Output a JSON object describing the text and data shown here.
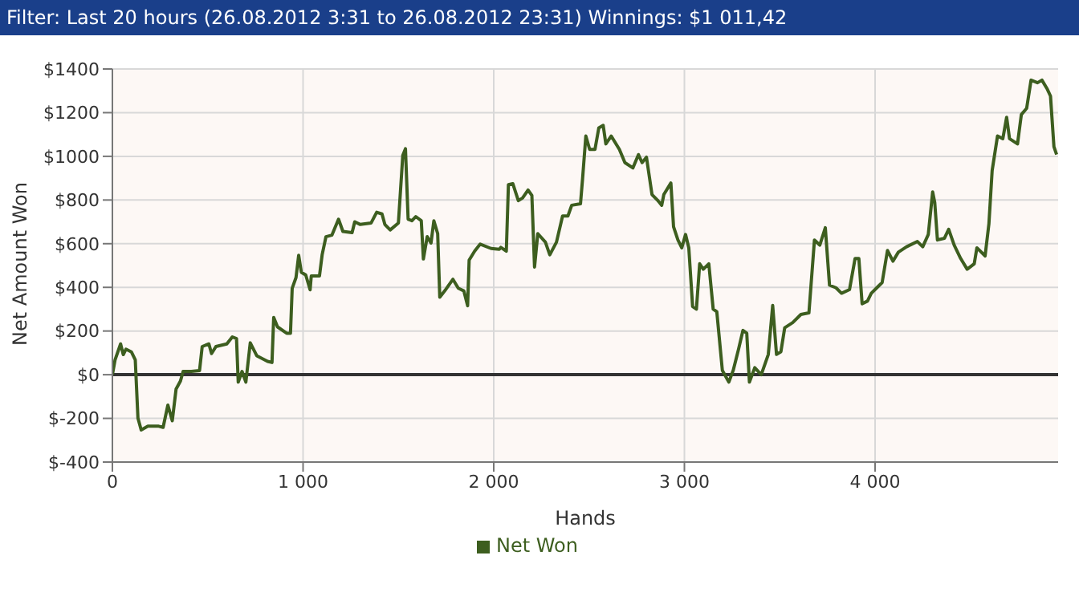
{
  "chart_data": {
    "type": "line",
    "title": "Filter: Last 20 hours (26.08.2012 3:31 to 26.08.2012 23:31) Winnings: $1 011,42",
    "xlabel": "Hands",
    "ylabel": "Net Amount Won",
    "xlim": [
      0,
      4960
    ],
    "xticks": [
      0,
      {
        "value": 1000,
        "label": "1 000"
      },
      {
        "value": 2000,
        "label": "2 000"
      },
      {
        "value": 3000,
        "label": "3 000"
      },
      {
        "value": 4000,
        "label": "4 000"
      }
    ],
    "ylim": [
      -400,
      1400
    ],
    "yticks": [
      {
        "value": -400,
        "label": "$-400"
      },
      {
        "value": -200,
        "label": "$-200"
      },
      {
        "value": 0,
        "label": "$0"
      },
      {
        "value": 200,
        "label": "$200"
      },
      {
        "value": 400,
        "label": "$400"
      },
      {
        "value": 600,
        "label": "$600"
      },
      {
        "value": 800,
        "label": "$800"
      },
      {
        "value": 1000,
        "label": "$1000"
      },
      {
        "value": 1200,
        "label": "$1200"
      },
      {
        "value": 1400,
        "label": "$1400"
      }
    ],
    "grid": true,
    "legend": "bottom",
    "marker": "none",
    "line_style": "solid",
    "ref_lines": [
      {
        "axis": "y",
        "value": 0,
        "color": "#333333"
      }
    ],
    "x": [
      0,
      14,
      43,
      57,
      71,
      100,
      120,
      134,
      151,
      186,
      243,
      266,
      291,
      314,
      334,
      357,
      371,
      414,
      457,
      471,
      506,
      520,
      543,
      600,
      629,
      651,
      660,
      680,
      700,
      723,
      757,
      814,
      837,
      846,
      866,
      914,
      934,
      943,
      963,
      977,
      991,
      1014,
      1037,
      1043,
      1086,
      1100,
      1120,
      1151,
      1186,
      1209,
      1257,
      1271,
      1300,
      1357,
      1386,
      1414,
      1429,
      1457,
      1500,
      1523,
      1537,
      1551,
      1571,
      1591,
      1620,
      1631,
      1651,
      1671,
      1686,
      1706,
      1717,
      1743,
      1786,
      1814,
      1843,
      1863,
      1871,
      1900,
      1929,
      1986,
      2029,
      2037,
      2066,
      2077,
      2100,
      2129,
      2151,
      2180,
      2200,
      2214,
      2231,
      2271,
      2294,
      2329,
      2361,
      2389,
      2409,
      2455,
      2466,
      2483,
      2503,
      2531,
      2551,
      2574,
      2588,
      2616,
      2659,
      2688,
      2730,
      2759,
      2778,
      2801,
      2830,
      2858,
      2881,
      2892,
      2929,
      2943,
      2966,
      2986,
      3006,
      3023,
      3043,
      3063,
      3080,
      3099,
      3128,
      3151,
      3170,
      3199,
      3233,
      3256,
      3284,
      3307,
      3327,
      3341,
      3369,
      3403,
      3440,
      3463,
      3483,
      3506,
      3526,
      3568,
      3611,
      3653,
      3682,
      3710,
      3739,
      3761,
      3795,
      3824,
      3866,
      3895,
      3915,
      3932,
      3960,
      3980,
      4009,
      4037,
      4065,
      4094,
      4122,
      4165,
      4222,
      4250,
      4279,
      4302,
      4313,
      4327,
      4364,
      4386,
      4415,
      4449,
      4483,
      4520,
      4534,
      4577,
      4597,
      4614,
      4642,
      4670,
      4690,
      4705,
      4747,
      4767,
      4795,
      4818,
      4852,
      4875,
      4903,
      4920,
      4938,
      4952
    ],
    "series": [
      {
        "name": "Net Won",
        "color": "#3d5e1f",
        "values": [
          0,
          68,
          141,
          92,
          117,
          104,
          68,
          -199,
          -253,
          -236,
          -236,
          -241,
          -139,
          -211,
          -66,
          -29,
          15,
          15,
          19,
          129,
          141,
          97,
          129,
          141,
          173,
          165,
          -34,
          15,
          -34,
          146,
          87,
          61,
          56,
          262,
          219,
          190,
          190,
          396,
          445,
          547,
          469,
          457,
          389,
          452,
          452,
          549,
          632,
          639,
          712,
          656,
          651,
          700,
          688,
          695,
          744,
          736,
          688,
          663,
          695,
          1004,
          1035,
          712,
          705,
          724,
          705,
          530,
          632,
          603,
          705,
          646,
          355,
          384,
          437,
          396,
          384,
          316,
          525,
          566,
          598,
          578,
          574,
          583,
          566,
          870,
          875,
          797,
          809,
          846,
          821,
          493,
          646,
          607,
          549,
          607,
          727,
          727,
          776,
          783,
          898,
          1093,
          1032,
          1032,
          1130,
          1142,
          1057,
          1093,
          1032,
          971,
          947,
          1008,
          971,
          996,
          825,
          800,
          776,
          825,
          878,
          678,
          617,
          581,
          642,
          581,
          312,
          300,
          508,
          483,
          508,
          300,
          288,
          20,
          -34,
          20,
          117,
          203,
          190,
          -34,
          32,
          0,
          93,
          317,
          93,
          105,
          215,
          239,
          276,
          283,
          617,
          593,
          673,
          410,
          398,
          373,
          390,
          532,
          532,
          325,
          337,
          373,
          398,
          422,
          569,
          520,
          561,
          586,
          610,
          586,
          642,
          837,
          788,
          617,
          625,
          666,
          593,
          532,
          483,
          508,
          581,
          544,
          691,
          935,
          1093,
          1081,
          1179,
          1081,
          1057,
          1191,
          1220,
          1349,
          1337,
          1349,
          1308,
          1276,
          1044,
          1008
        ]
      }
    ]
  }
}
